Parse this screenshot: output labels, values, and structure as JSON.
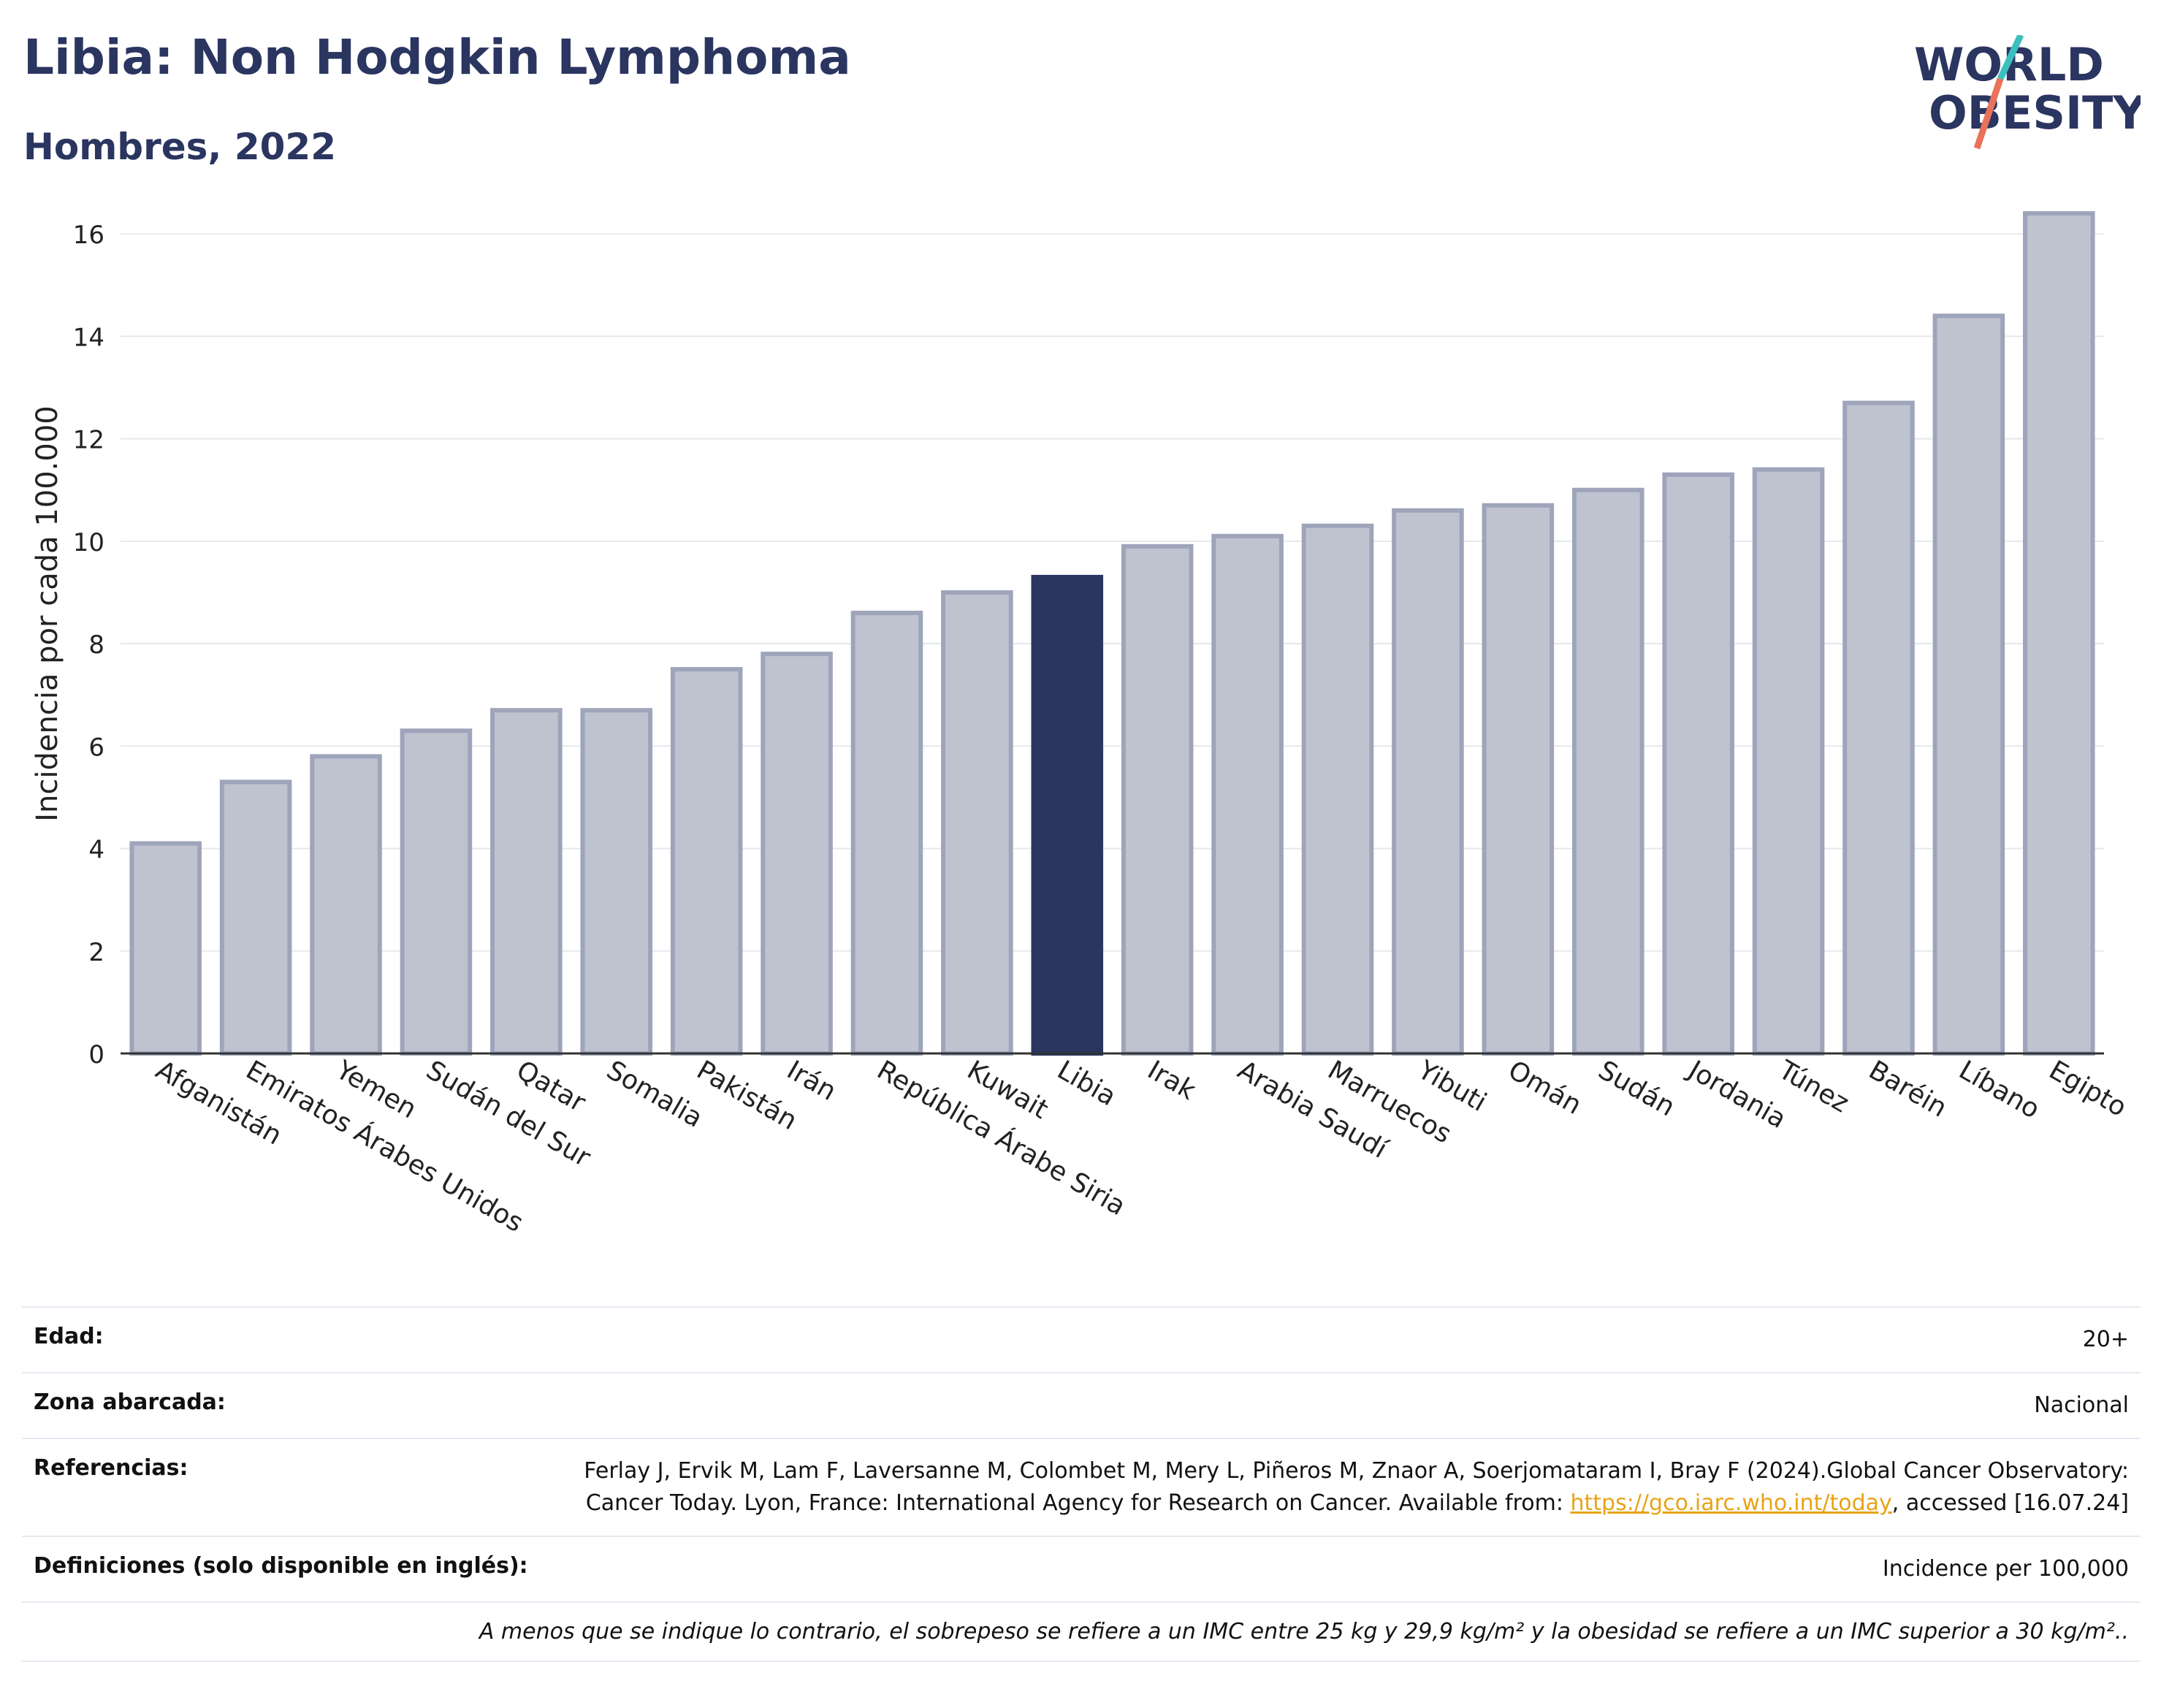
{
  "header": {
    "title": "Libia: Non Hodgkin Lymphoma",
    "subtitle": "Hombres, 2022",
    "logo_line1": "WORLD",
    "logo_line2": "OBESITY"
  },
  "colors": {
    "title": "#2a3560",
    "bar_default": "#bfc3d0",
    "bar_default_stroke": "#9ea4ba",
    "bar_highlight": "#2a3560",
    "grid": "#e6e8ee",
    "link": "#e8a317",
    "logo_teal": "#3bbfbf",
    "logo_coral": "#e8735a"
  },
  "chart_data": {
    "type": "bar",
    "title": "Libia: Non Hodgkin Lymphoma",
    "subtitle": "Hombres, 2022",
    "ylabel": "Incidencia por cada 100.000",
    "xlabel": "",
    "ylim": [
      0,
      17
    ],
    "yticks": [
      0,
      2,
      4,
      6,
      8,
      10,
      12,
      14,
      16
    ],
    "grid": true,
    "highlight": "Libia",
    "categories": [
      "Afganistán",
      "Emiratos Árabes Unidos",
      "Yemen",
      "Sudán del Sur",
      "Qatar",
      "Somalia",
      "Pakistán",
      "Irán",
      "República Árabe Siria",
      "Kuwait",
      "Libia",
      "Irak",
      "Arabia Saudí",
      "Marruecos",
      "Yibuti",
      "Omán",
      "Sudán",
      "Jordania",
      "Túnez",
      "Baréin",
      "Líbano",
      "Egipto"
    ],
    "values": [
      4.1,
      5.3,
      5.8,
      6.3,
      6.7,
      6.7,
      7.5,
      7.8,
      8.6,
      9.0,
      9.3,
      9.9,
      10.1,
      10.3,
      10.6,
      10.7,
      11.0,
      11.3,
      11.4,
      12.7,
      14.4,
      16.4
    ]
  },
  "meta": {
    "edad_label": "Edad:",
    "edad_value": "20+",
    "zona_label": "Zona abarcada:",
    "zona_value": "Nacional",
    "ref_label": "Referencias:",
    "ref_text_1": "Ferlay J, Ervik M, Lam F, Laversanne M, Colombet M, Mery L, Piñeros M, Znaor A, Soerjomataram I, Bray F (2024).Global Cancer Observatory: Cancer Today. Lyon, France: International Agency for Research on Cancer. Available from: ",
    "ref_link": "https://gco.iarc.who.int/today",
    "ref_text_2": ", accessed [16.07.24]",
    "def_label": "Definiciones (solo disponible en inglés):",
    "def_value": "Incidence per 100,000",
    "note": "A menos que se indique lo contrario, el sobrepeso se refiere a un IMC entre 25 kg y 29,9 kg/m² y la obesidad se refiere a un IMC superior a 30 kg/m².."
  }
}
